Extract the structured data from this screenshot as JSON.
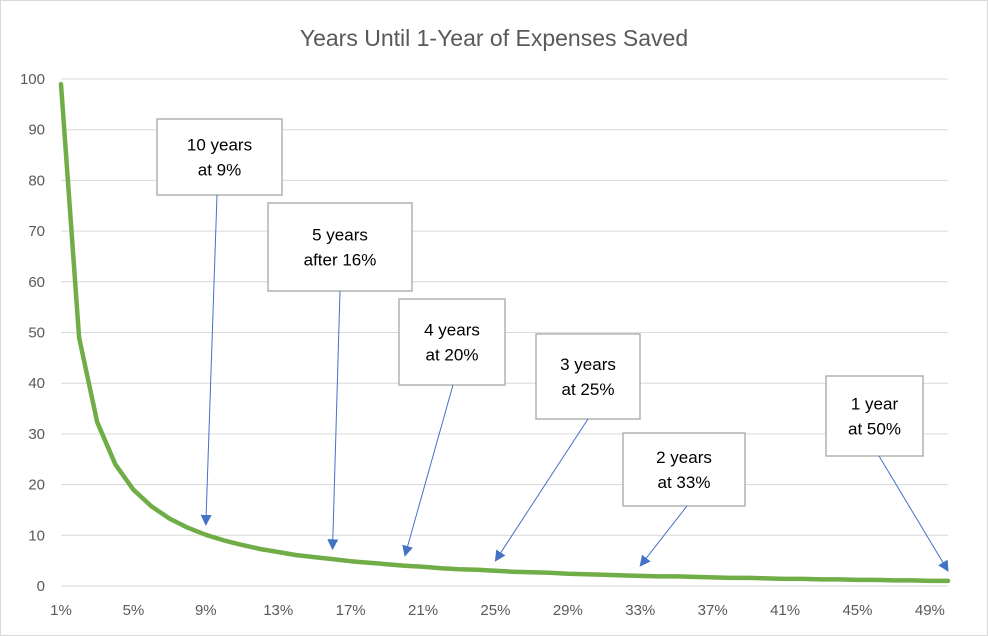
{
  "chart_data": {
    "type": "line",
    "title": "Years Until 1-Year of Expenses Saved",
    "xlabel": "",
    "ylabel": "",
    "x_unit": "%",
    "x": [
      1,
      2,
      3,
      4,
      5,
      6,
      7,
      8,
      9,
      10,
      11,
      12,
      13,
      14,
      15,
      16,
      17,
      18,
      19,
      20,
      21,
      22,
      23,
      24,
      25,
      26,
      27,
      28,
      29,
      30,
      31,
      32,
      33,
      34,
      35,
      36,
      37,
      38,
      39,
      40,
      41,
      42,
      43,
      44,
      45,
      46,
      47,
      48,
      49,
      50
    ],
    "series": [
      {
        "name": "",
        "color": "#70ad47",
        "values": [
          99,
          49,
          32.3,
          24,
          19,
          15.7,
          13.3,
          11.5,
          10.1,
          9,
          8.1,
          7.3,
          6.7,
          6.1,
          5.7,
          5.3,
          4.9,
          4.6,
          4.3,
          4,
          3.8,
          3.5,
          3.3,
          3.2,
          3,
          2.8,
          2.7,
          2.6,
          2.4,
          2.3,
          2.2,
          2.1,
          2,
          1.9,
          1.9,
          1.8,
          1.7,
          1.6,
          1.6,
          1.5,
          1.4,
          1.4,
          1.3,
          1.3,
          1.2,
          1.2,
          1.1,
          1.1,
          1,
          1
        ]
      }
    ],
    "x_tick_labels": [
      "1%",
      "5%",
      "9%",
      "13%",
      "17%",
      "21%",
      "25%",
      "29%",
      "33%",
      "37%",
      "41%",
      "45%",
      "49%"
    ],
    "x_tick_values": [
      1,
      5,
      9,
      13,
      17,
      21,
      25,
      29,
      33,
      37,
      41,
      45,
      49
    ],
    "y_ticks": [
      0,
      10,
      20,
      30,
      40,
      50,
      60,
      70,
      80,
      90,
      100
    ],
    "ylim": [
      0,
      100
    ],
    "xlim": [
      1,
      50
    ],
    "grid": true,
    "legend": "none",
    "annotations": [
      {
        "lines": [
          "10 years",
          "at 9%"
        ],
        "target": [
          9,
          10.1
        ]
      },
      {
        "lines": [
          "5 years",
          "after 16%"
        ],
        "target": [
          16,
          5.3
        ]
      },
      {
        "lines": [
          "4 years",
          "at 20%"
        ],
        "target": [
          20,
          4
        ]
      },
      {
        "lines": [
          "3 years",
          "at 25%"
        ],
        "target": [
          25,
          3
        ]
      },
      {
        "lines": [
          "2 years",
          "at 33%"
        ],
        "target": [
          33,
          2
        ]
      },
      {
        "lines": [
          "1 year",
          "at 50%"
        ],
        "target": [
          50,
          1
        ]
      }
    ],
    "colors": {
      "line": "#70ad47",
      "arrow": "#4472c4",
      "grid": "#d9d9d9",
      "text": "#595959"
    }
  }
}
